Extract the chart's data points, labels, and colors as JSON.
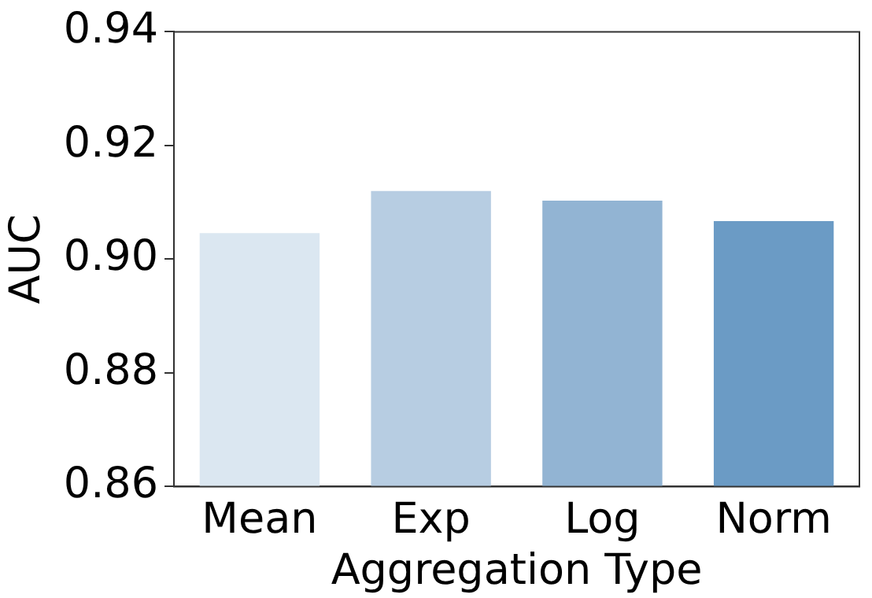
{
  "chart_data": {
    "type": "bar",
    "xlabel": "Aggregation Type",
    "ylabel": "AUC",
    "categories": [
      "Mean",
      "Exp",
      "Log",
      "Norm"
    ],
    "values": [
      0.9046,
      0.912,
      0.9103,
      0.9067
    ],
    "colors": [
      "#dbe7f1",
      "#b7cde2",
      "#92b4d3",
      "#6b9bc5"
    ],
    "ylim": [
      0.86,
      0.94
    ],
    "yticks": [
      0.86,
      0.88,
      {
        "value": 0.9,
        "label": "0.90"
      },
      0.92,
      0.94
    ],
    "grid": false,
    "legend": false
  }
}
